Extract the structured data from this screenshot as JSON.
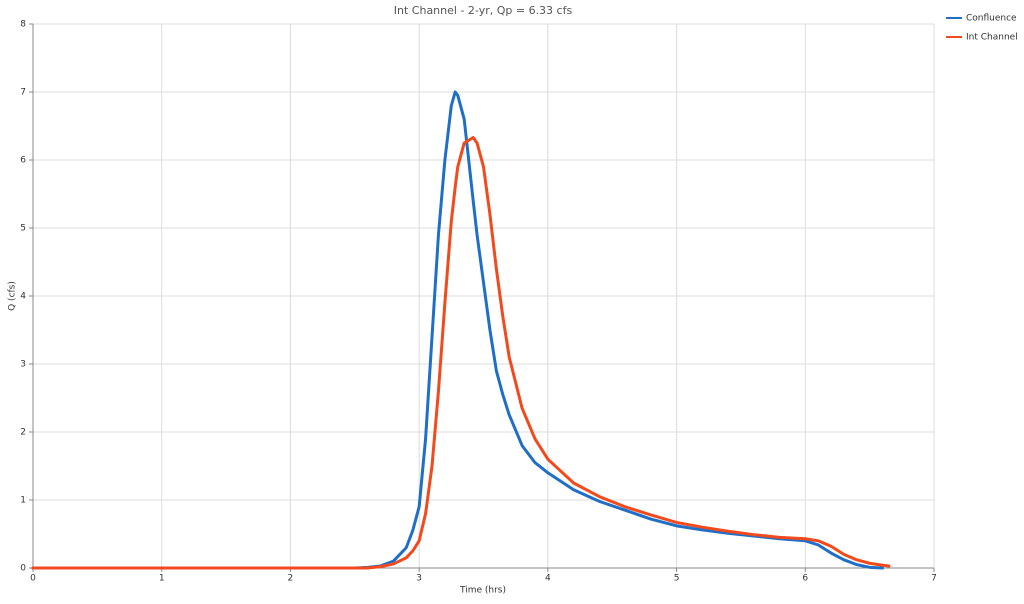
{
  "chart_data": {
    "type": "line",
    "title": "Int Channel - 2-yr, Qp = 6.33 cfs",
    "x_label": "Time (hrs)",
    "y_label": "Q (cfs)",
    "x": [
      0,
      1,
      2,
      2.5,
      2.6,
      2.7,
      2.8,
      2.9,
      2.95,
      3.0,
      3.05,
      3.1,
      3.15,
      3.2,
      3.25,
      3.28,
      3.3,
      3.35,
      3.42,
      3.45,
      3.5,
      3.55,
      3.6,
      3.65,
      3.7,
      3.8,
      3.9,
      4.0,
      4.2,
      4.4,
      4.6,
      4.8,
      5.0,
      5.2,
      5.4,
      5.6,
      5.8,
      6.0,
      6.1,
      6.2,
      6.3,
      6.4,
      6.5,
      6.6,
      6.65
    ],
    "series": [
      {
        "name": "Confluence",
        "color": "#1f6fc8",
        "values": [
          0,
          0,
          0,
          0,
          0.01,
          0.03,
          0.1,
          0.3,
          0.55,
          0.9,
          1.9,
          3.4,
          4.9,
          6.0,
          6.8,
          7.0,
          6.95,
          6.6,
          5.4,
          4.9,
          4.2,
          3.5,
          2.9,
          2.55,
          2.25,
          1.8,
          1.55,
          1.4,
          1.15,
          0.98,
          0.85,
          0.72,
          0.62,
          0.56,
          0.51,
          0.47,
          0.43,
          0.4,
          0.34,
          0.22,
          0.12,
          0.05,
          0.01,
          0,
          null
        ]
      },
      {
        "name": "Int Channel",
        "color": "#f24a1c",
        "values": [
          0,
          0,
          0,
          0,
          0,
          0.02,
          0.06,
          0.15,
          0.25,
          0.4,
          0.8,
          1.5,
          2.6,
          3.9,
          5.1,
          5.6,
          5.9,
          6.25,
          6.33,
          6.25,
          5.9,
          5.2,
          4.4,
          3.7,
          3.1,
          2.35,
          1.9,
          1.6,
          1.25,
          1.05,
          0.9,
          0.78,
          0.67,
          0.6,
          0.54,
          0.49,
          0.45,
          0.43,
          0.4,
          0.32,
          0.2,
          0.12,
          0.07,
          0.04,
          0.03
        ]
      }
    ],
    "xlim": [
      0,
      7
    ],
    "xticks": [
      0,
      1,
      2,
      3,
      4,
      5,
      6,
      7
    ],
    "ylim": [
      0,
      8
    ],
    "yticks": [
      0,
      1,
      2,
      3,
      4,
      5,
      6,
      7,
      8
    ],
    "grid": true,
    "legend": "top-right"
  }
}
